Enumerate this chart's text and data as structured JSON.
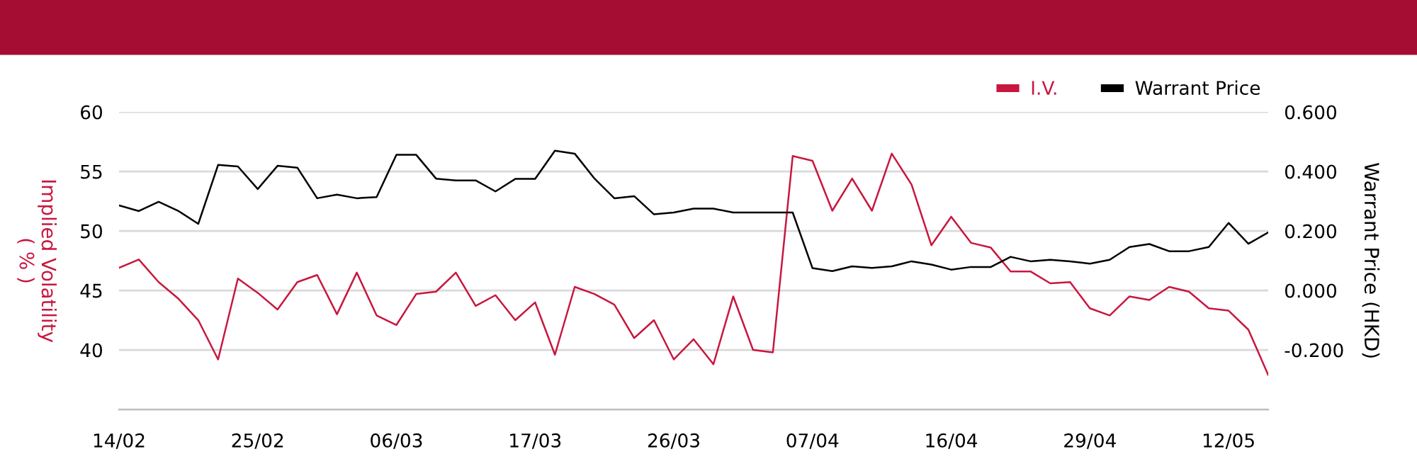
{
  "chart_data": {
    "type": "line",
    "categories": [
      "14/02",
      null,
      null,
      null,
      null,
      null,
      null,
      "25/02",
      null,
      null,
      null,
      null,
      null,
      null,
      "06/03",
      null,
      null,
      null,
      null,
      null,
      null,
      "17/03",
      null,
      null,
      null,
      null,
      null,
      null,
      "26/03",
      null,
      null,
      null,
      null,
      null,
      null,
      "07/04",
      null,
      null,
      null,
      null,
      null,
      null,
      "16/04",
      null,
      null,
      null,
      null,
      null,
      null,
      "29/04",
      null,
      null,
      null,
      null,
      null,
      null,
      "12/05",
      null,
      null
    ],
    "series": [
      {
        "name": "I.V.",
        "color": "#c8173f",
        "axis": "y",
        "values": [
          46.9,
          47.6,
          45.7,
          44.3,
          42.5,
          39.2,
          46.0,
          44.8,
          43.4,
          45.7,
          46.3,
          43.0,
          46.5,
          42.9,
          42.1,
          44.7,
          44.9,
          46.5,
          43.7,
          44.6,
          42.5,
          44.0,
          39.6,
          45.3,
          44.7,
          43.8,
          41.0,
          42.5,
          39.2,
          40.9,
          38.8,
          44.5,
          40.0,
          39.8,
          56.3,
          55.9,
          51.7,
          54.4,
          51.7,
          56.5,
          53.9,
          48.8,
          51.2,
          49.0,
          48.6,
          46.6,
          46.6,
          45.6,
          45.7,
          43.5,
          42.9,
          44.5,
          44.2,
          45.3,
          44.9,
          43.5,
          43.3,
          41.7,
          37.9
        ]
      },
      {
        "name": "Warrant Price",
        "color": "#000000",
        "axis": "y2",
        "values": [
          0.286,
          0.267,
          0.298,
          0.267,
          0.224,
          0.422,
          0.417,
          0.341,
          0.419,
          0.413,
          0.31,
          0.322,
          0.31,
          0.314,
          0.456,
          0.456,
          0.376,
          0.37,
          0.37,
          0.333,
          0.375,
          0.375,
          0.47,
          0.46,
          0.376,
          0.31,
          0.317,
          0.256,
          0.262,
          0.275,
          0.275,
          0.262,
          0.262,
          0.262,
          0.262,
          0.075,
          0.065,
          0.081,
          0.076,
          0.081,
          0.098,
          0.087,
          0.07,
          0.079,
          0.079,
          0.113,
          0.098,
          0.103,
          0.098,
          0.09,
          0.103,
          0.146,
          0.156,
          0.132,
          0.132,
          0.146,
          0.227,
          0.157,
          0.195
        ]
      }
    ],
    "ylabel": "Implied Volatility\n( % )",
    "y2label": "Warrant Price (HKD)",
    "ylim": [
      35,
      60
    ],
    "yticks": [
      {
        "value": 35,
        "label": null
      },
      40,
      45,
      50,
      55,
      60
    ],
    "y2lim": [
      -0.4,
      0.6
    ],
    "y2ticks": [
      {
        "value": -0.4,
        "label": null
      },
      {
        "value": -0.2,
        "label": "-0.200"
      },
      {
        "value": 0,
        "label": "0.000"
      },
      {
        "value": 0.2,
        "label": "0.200"
      },
      {
        "value": 0.4,
        "label": "0.400"
      },
      {
        "value": 0.6,
        "label": "0.600"
      }
    ],
    "grid": "y",
    "legend": "top right",
    "marker": "none",
    "line_style": "solid"
  }
}
